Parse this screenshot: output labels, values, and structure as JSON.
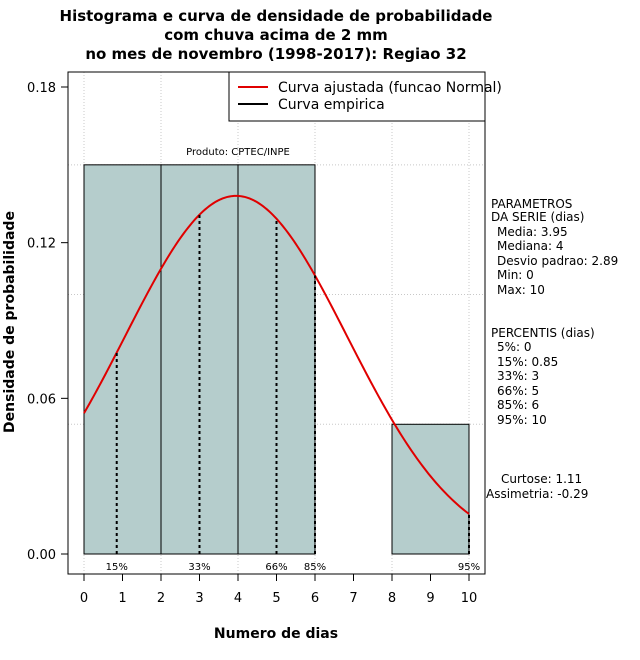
{
  "chart_data": {
    "type": "bar",
    "title_lines": [
      "Histograma e curva de densidade de probabilidade",
      "com chuva acima de 2 mm",
      "no mes de novembro (1998-2017): Regiao 32"
    ],
    "xlabel": "Numero de dias",
    "ylabel": "Densidade de probabilidade",
    "xlim": [
      0,
      10
    ],
    "ylim": [
      0,
      0.18
    ],
    "x_ticks": [
      "0",
      "1",
      "2",
      "3",
      "4",
      "5",
      "6",
      "7",
      "8",
      "9",
      "10"
    ],
    "y_ticks": [
      "0.00",
      "0.06",
      "0.12",
      "0.18"
    ],
    "bins": [
      {
        "start": 0,
        "end": 2,
        "density": 0.15
      },
      {
        "start": 2,
        "end": 4,
        "density": 0.15
      },
      {
        "start": 4,
        "end": 6,
        "density": 0.15
      },
      {
        "start": 6,
        "end": 8,
        "density": 0.0
      },
      {
        "start": 8,
        "end": 10,
        "density": 0.05
      }
    ],
    "bar_color": "#b5cdcc",
    "curve_color": "#e00000",
    "normal_fit": {
      "mean": 3.95,
      "sd": 2.89
    },
    "percentile_markers": [
      {
        "label": "15%",
        "x": 0.85
      },
      {
        "label": "33%",
        "x": 3
      },
      {
        "label": "66%",
        "x": 5
      },
      {
        "label": "85%",
        "x": 6
      },
      {
        "label": "95%",
        "x": 10
      }
    ],
    "legend": [
      {
        "label": "Curva ajustada (funcao Normal)",
        "color": "#e00000"
      },
      {
        "label": "Curva empirica",
        "color": "#000000"
      }
    ],
    "legend_position": "top-right",
    "grid": true,
    "product_label": "Produto: CPTEC/INPE"
  },
  "side_panel": {
    "parametros_lines": [
      "PARAMETROS",
      "DA SERIE (dias)",
      "Media: 3.95",
      "Mediana: 4",
      "Desvio padrao: 2.89",
      "Min: 0",
      "Max: 10"
    ],
    "percentis_lines": [
      "PERCENTIS (dias)",
      "5%: 0",
      "15%: 0.85",
      "33%: 3",
      "66%: 5",
      "85%: 6",
      "95%: 10"
    ],
    "curtose": "Curtose: 1.11",
    "assimetria": "Assimetria: -0.29"
  }
}
